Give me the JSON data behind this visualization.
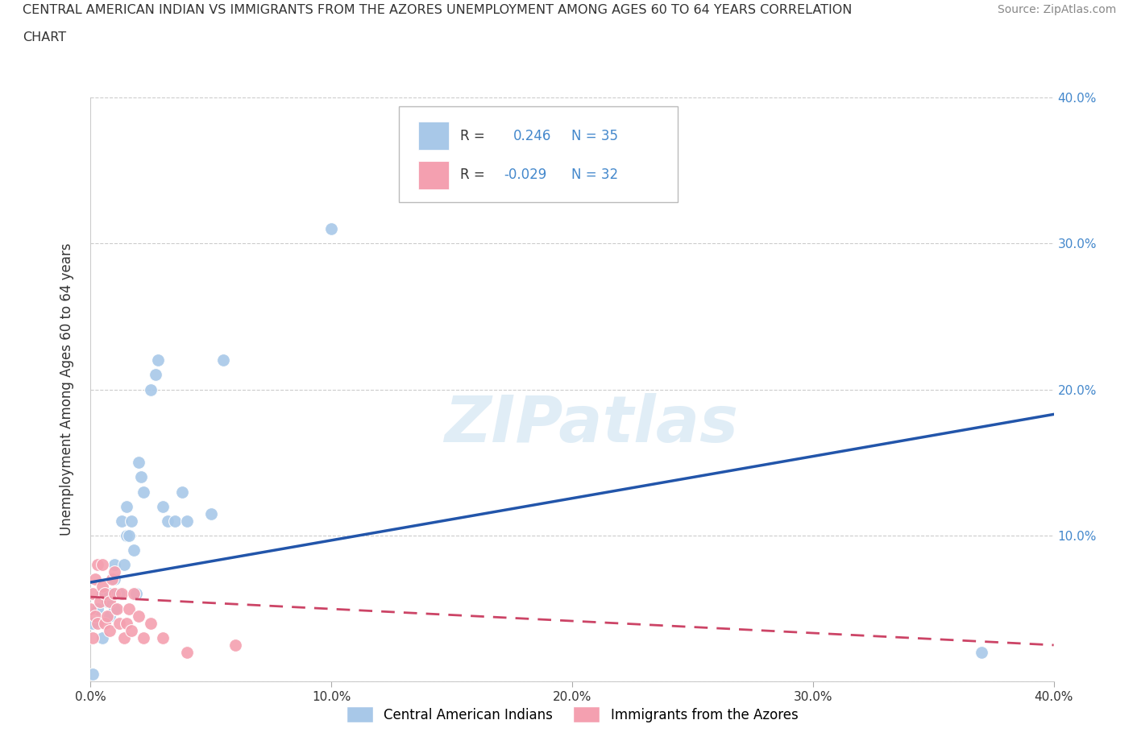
{
  "title_line1": "CENTRAL AMERICAN INDIAN VS IMMIGRANTS FROM THE AZORES UNEMPLOYMENT AMONG AGES 60 TO 64 YEARS CORRELATION",
  "title_line2": "CHART",
  "source_text": "Source: ZipAtlas.com",
  "ylabel": "Unemployment Among Ages 60 to 64 years",
  "xlim": [
    0.0,
    0.4
  ],
  "ylim": [
    0.0,
    0.4
  ],
  "xticks": [
    0.0,
    0.1,
    0.2,
    0.3,
    0.4
  ],
  "yticks": [
    0.0,
    0.1,
    0.2,
    0.3,
    0.4
  ],
  "xticklabels": [
    "0.0%",
    "10.0%",
    "20.0%",
    "30.0%",
    "40.0%"
  ],
  "right_yticklabels": [
    "",
    "10.0%",
    "20.0%",
    "30.0%",
    "40.0%"
  ],
  "watermark": "ZIPatlas",
  "blue_R": 0.246,
  "blue_N": 35,
  "pink_R": -0.029,
  "pink_N": 32,
  "blue_color": "#a8c8e8",
  "pink_color": "#f4a0b0",
  "blue_line_color": "#2255aa",
  "pink_line_color": "#cc4466",
  "background_color": "#ffffff",
  "grid_color": "#cccccc",
  "blue_scatter_x": [
    0.001,
    0.003,
    0.005,
    0.005,
    0.007,
    0.008,
    0.008,
    0.01,
    0.01,
    0.01,
    0.012,
    0.013,
    0.014,
    0.015,
    0.015,
    0.016,
    0.017,
    0.018,
    0.019,
    0.02,
    0.021,
    0.022,
    0.025,
    0.027,
    0.028,
    0.03,
    0.032,
    0.035,
    0.038,
    0.04,
    0.05,
    0.055,
    0.1,
    0.37,
    0.001
  ],
  "blue_scatter_y": [
    0.04,
    0.05,
    0.06,
    0.03,
    0.055,
    0.045,
    0.06,
    0.07,
    0.05,
    0.08,
    0.06,
    0.11,
    0.08,
    0.1,
    0.12,
    0.1,
    0.11,
    0.09,
    0.06,
    0.15,
    0.14,
    0.13,
    0.2,
    0.21,
    0.22,
    0.12,
    0.11,
    0.11,
    0.13,
    0.11,
    0.115,
    0.22,
    0.31,
    0.02,
    0.005
  ],
  "pink_scatter_x": [
    0.0,
    0.001,
    0.001,
    0.002,
    0.002,
    0.003,
    0.003,
    0.004,
    0.005,
    0.005,
    0.006,
    0.006,
    0.007,
    0.008,
    0.008,
    0.009,
    0.01,
    0.01,
    0.011,
    0.012,
    0.013,
    0.014,
    0.015,
    0.016,
    0.017,
    0.018,
    0.02,
    0.022,
    0.025,
    0.03,
    0.04,
    0.06
  ],
  "pink_scatter_y": [
    0.05,
    0.03,
    0.06,
    0.045,
    0.07,
    0.04,
    0.08,
    0.055,
    0.065,
    0.08,
    0.04,
    0.06,
    0.045,
    0.035,
    0.055,
    0.07,
    0.06,
    0.075,
    0.05,
    0.04,
    0.06,
    0.03,
    0.04,
    0.05,
    0.035,
    0.06,
    0.045,
    0.03,
    0.04,
    0.03,
    0.02,
    0.025
  ],
  "blue_line_x": [
    0.0,
    0.4
  ],
  "blue_line_y": [
    0.068,
    0.183
  ],
  "pink_line_x": [
    0.0,
    0.4
  ],
  "pink_line_y": [
    0.058,
    0.025
  ],
  "legend_label_blue": "Central American Indians",
  "legend_label_pink": "Immigrants from the Azores"
}
